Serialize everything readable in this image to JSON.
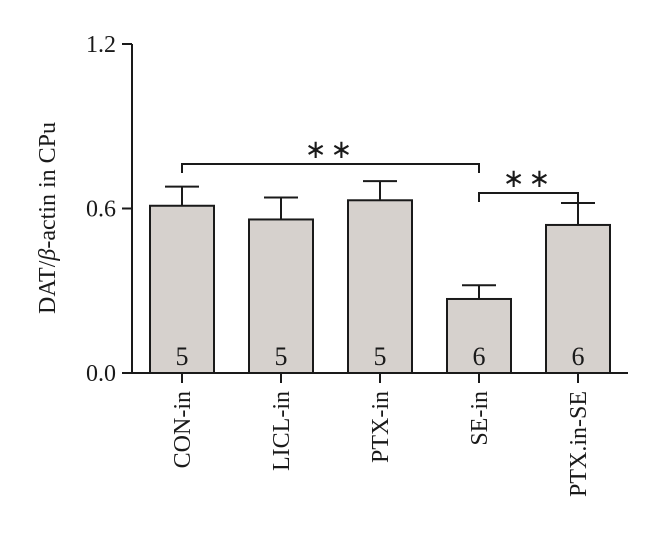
{
  "chart_data": {
    "type": "bar",
    "categories": [
      "CON-in",
      "LICL-in",
      "PTX-in",
      "SE-in",
      "PTX.in-SE"
    ],
    "values": [
      0.61,
      0.56,
      0.63,
      0.27,
      0.54
    ],
    "errors": [
      0.07,
      0.08,
      0.07,
      0.05,
      0.08
    ],
    "n": [
      "5",
      "5",
      "5",
      "6",
      "6"
    ],
    "ylabel_parts": [
      "DAT/",
      "β",
      "-actin in CPu"
    ],
    "ylim": [
      0,
      1.2
    ],
    "yticks": [
      "0.0",
      "0.6",
      "1.2"
    ],
    "bar_color": "#d6d1cd",
    "significance": [
      {
        "from": "CON-in",
        "to": "SE-in",
        "label": "∗∗"
      },
      {
        "from": "SE-in",
        "to": "PTX.in-SE",
        "label": "∗∗"
      }
    ]
  }
}
